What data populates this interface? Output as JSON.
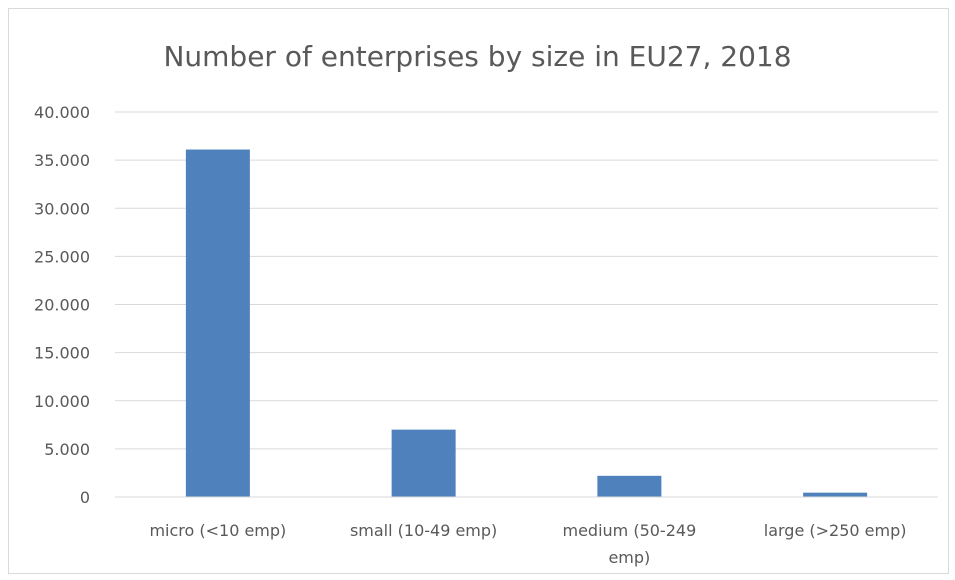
{
  "chart_data": {
    "type": "bar",
    "title": "Number of enterprises by size in EU27, 2018",
    "xlabel": "",
    "ylabel": "",
    "categories": [
      "micro (<10 emp)",
      "small (10-49 emp)",
      "medium (50-249 emp)",
      "large (>250 emp)"
    ],
    "category_lines": [
      [
        "micro (<10 emp)"
      ],
      [
        "small (10-49 emp)"
      ],
      [
        "medium (50-249",
        "emp)"
      ],
      [
        "large (>250 emp)"
      ]
    ],
    "values": [
      36100,
      7000,
      2200,
      450
    ],
    "ylim": [
      0,
      40000
    ],
    "yticks": [
      0,
      5000,
      10000,
      15000,
      20000,
      25000,
      30000,
      35000,
      40000
    ],
    "ytick_labels": [
      "0",
      "5.000",
      "10.000",
      "15.000",
      "20.000",
      "25.000",
      "30.000",
      "35.000",
      "40.000"
    ],
    "grid": true,
    "bar_color": "#4f81bd",
    "grid_color": "#d9d9d9"
  }
}
